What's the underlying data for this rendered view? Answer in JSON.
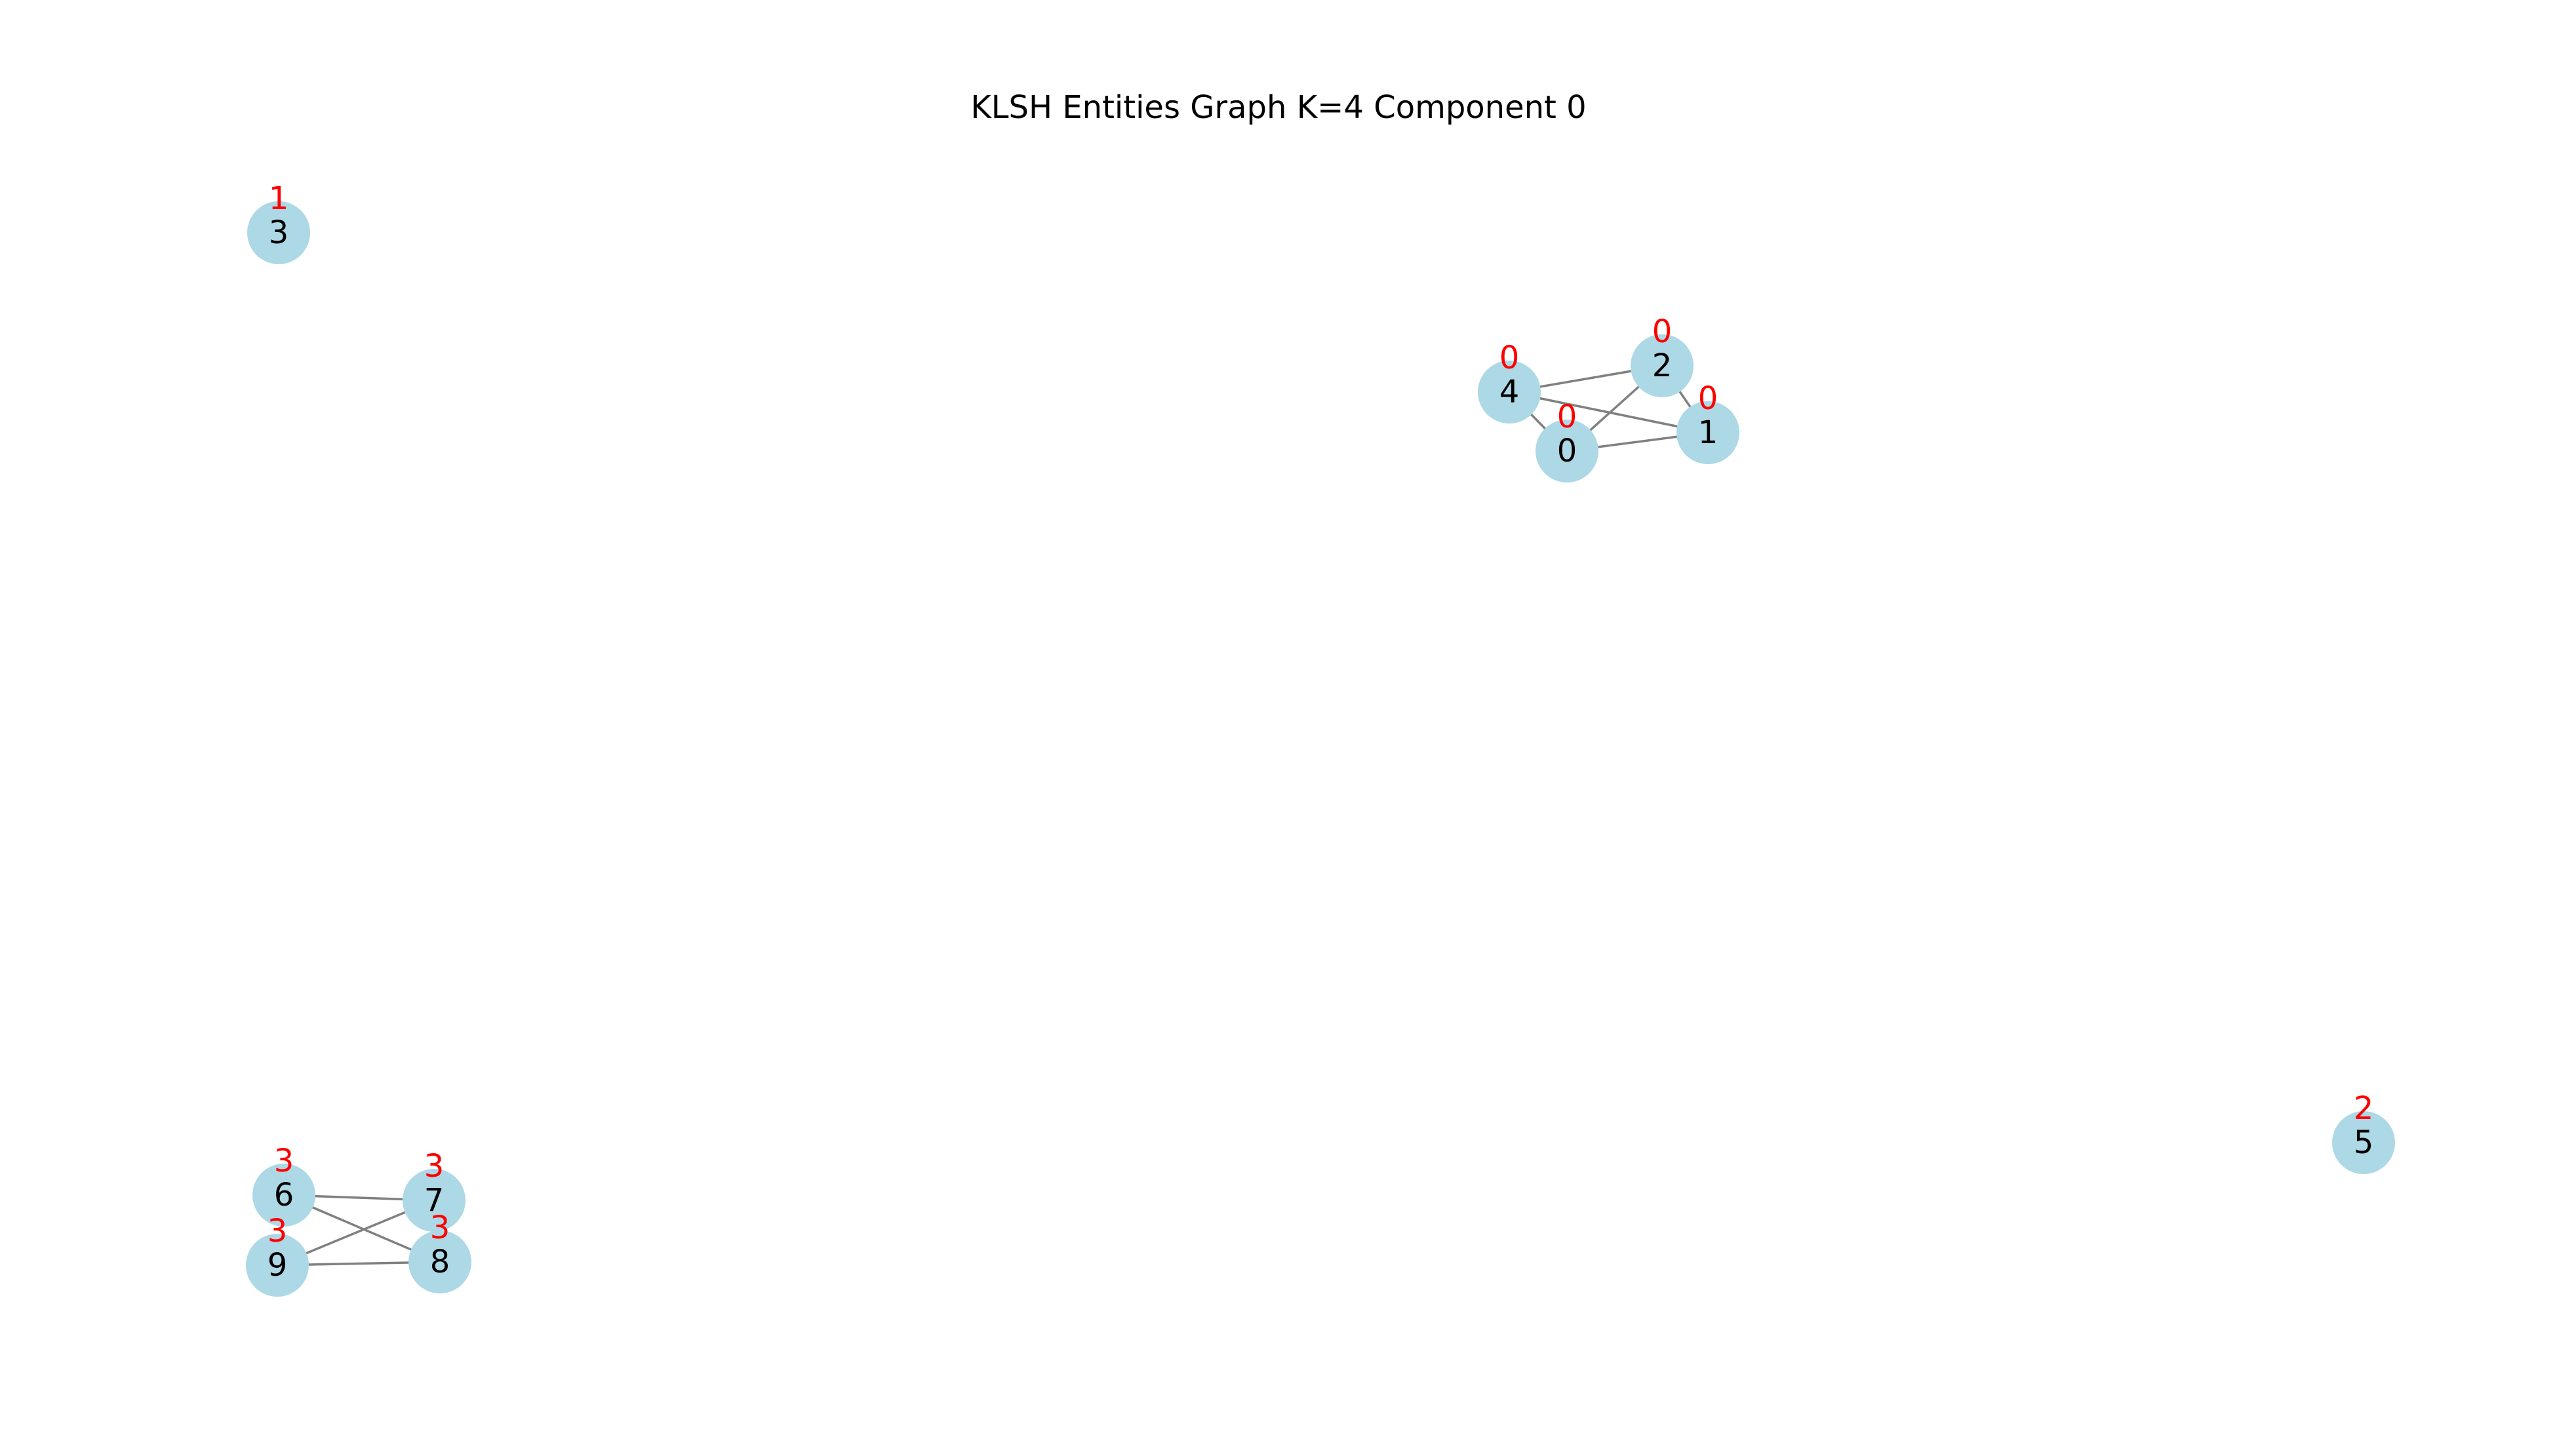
{
  "title": "KLSH Entities Graph K=4 Component 0",
  "colors": {
    "node_fill": "#add8e6",
    "edge_stroke": "#808080",
    "node_label": "#000000",
    "cluster_label": "#ff0000"
  },
  "nodes": [
    {
      "id": "0",
      "cluster": "0"
    },
    {
      "id": "1",
      "cluster": "0"
    },
    {
      "id": "2",
      "cluster": "0"
    },
    {
      "id": "3",
      "cluster": "1"
    },
    {
      "id": "4",
      "cluster": "0"
    },
    {
      "id": "5",
      "cluster": "2"
    },
    {
      "id": "6",
      "cluster": "3"
    },
    {
      "id": "7",
      "cluster": "3"
    },
    {
      "id": "8",
      "cluster": "3"
    },
    {
      "id": "9",
      "cluster": "3"
    }
  ],
  "edges": [
    [
      "4",
      "2"
    ],
    [
      "4",
      "1"
    ],
    [
      "4",
      "0"
    ],
    [
      "2",
      "0"
    ],
    [
      "2",
      "1"
    ],
    [
      "0",
      "1"
    ],
    [
      "6",
      "7"
    ],
    [
      "6",
      "8"
    ],
    [
      "9",
      "7"
    ],
    [
      "9",
      "8"
    ]
  ]
}
